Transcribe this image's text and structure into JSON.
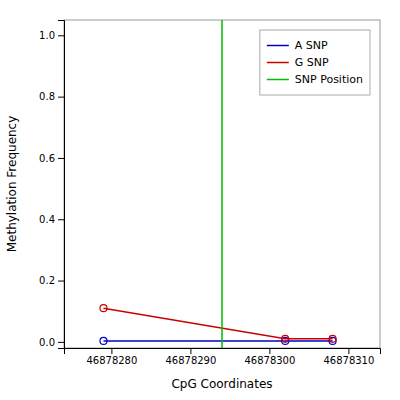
{
  "chart_data": {
    "type": "line",
    "xlabel": "CpG Coordinates",
    "ylabel": "Methylation Frequency",
    "xlim": [
      46878274,
      46878314
    ],
    "ylim": [
      -0.02,
      1.05
    ],
    "xticks": [
      46878280,
      46878290,
      46878300,
      46878310
    ],
    "yticks": [
      {
        "value": 0.0,
        "label": "0.0"
      },
      0.2,
      0.4,
      0.6,
      0.8,
      {
        "value": 1.0,
        "label": "1.0"
      }
    ],
    "x": [
      46878279,
      46878302,
      46878308
    ],
    "series": [
      {
        "name": "A SNP",
        "color": "#0000cc",
        "marker": "circle",
        "values": [
          0.003,
          0.003,
          0.003
        ]
      },
      {
        "name": "G SNP",
        "color": "#cc0000",
        "marker": "circle",
        "values": [
          0.11,
          0.01,
          0.01
        ]
      },
      {
        "name": "SNP Position",
        "type": "vline",
        "color": "#00bb00",
        "x": [
          46878294
        ]
      }
    ],
    "legend": "upper right",
    "grid": false
  }
}
